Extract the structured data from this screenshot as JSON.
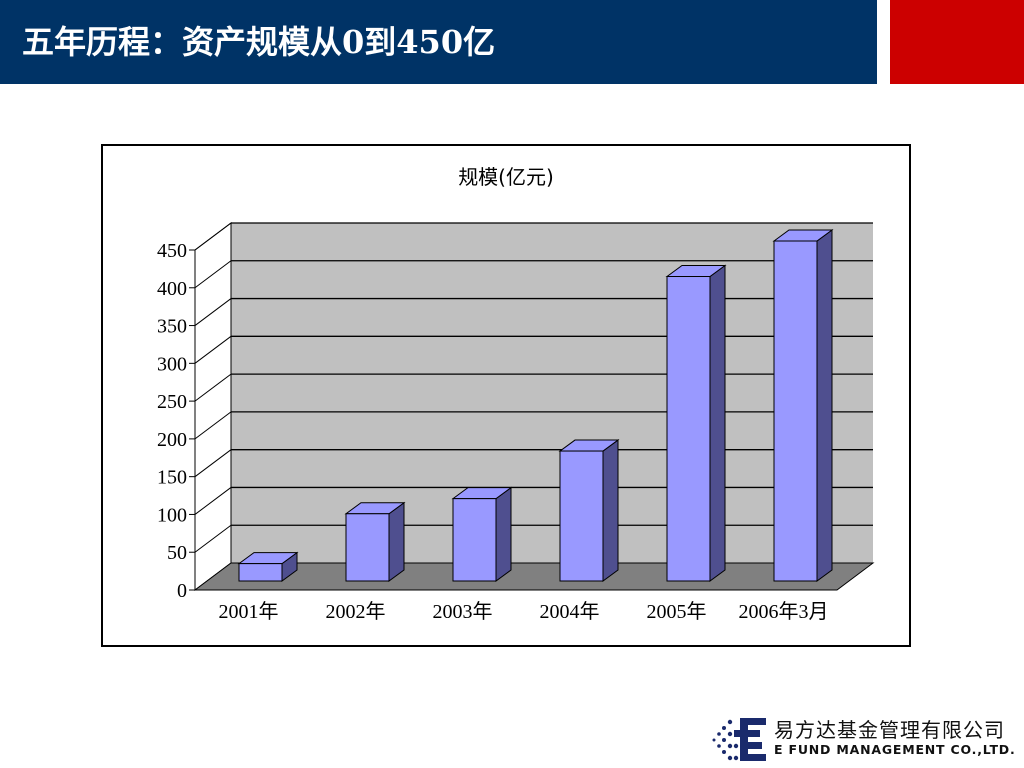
{
  "header": {
    "title_bold": "五年历程：",
    "title_rest": "资产规模从0到450亿"
  },
  "colors": {
    "header_bg": "#003366",
    "accent_red": "#cc0000",
    "bar_front": "#9999ff",
    "bar_side": "#4f4f8f",
    "plot_wall": "#c0c0c0",
    "plot_floor": "#808080"
  },
  "chart_data": {
    "type": "bar",
    "title": "规模(亿元)",
    "categories": [
      "2001年",
      "2002年",
      "2003年",
      "2004年",
      "2005年",
      "2006年3月"
    ],
    "values": [
      23,
      89,
      109,
      172,
      403,
      450
    ],
    "ylim": [
      0,
      450
    ],
    "yticks": [
      0,
      50,
      100,
      150,
      200,
      250,
      300,
      350,
      400,
      450
    ],
    "grid": true,
    "style": "3d-column"
  },
  "logo": {
    "cn": "易方达基金管理有限公司",
    "en": "E FUND MANAGEMENT CO.,LTD."
  }
}
